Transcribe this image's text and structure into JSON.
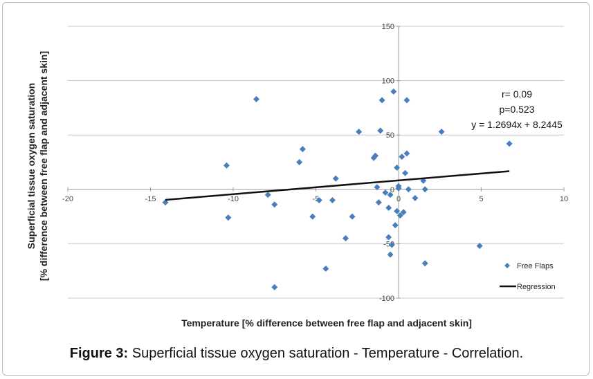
{
  "chart_data": {
    "type": "scatter",
    "xlabel": "Temperature [% difference between  free flap and adjacent skin]",
    "ylabel_line1": "Superficial tissue oxygen saturation",
    "ylabel_line2": "[% difference between  free flap and adjacent skin]",
    "xlim": [
      -20,
      10
    ],
    "ylim": [
      -100,
      150
    ],
    "x_ticks": [
      "-20",
      "-15",
      "-10",
      "-5",
      "0",
      "5",
      "10"
    ],
    "y_ticks": [
      "150",
      "100",
      "50",
      "0",
      "-50",
      "-100"
    ],
    "grid": "horizontal",
    "series": [
      {
        "name": "Free Flaps",
        "color": "#4a7ebb",
        "marker": "diamond",
        "x": [
          -14.1,
          -10.3,
          -10.4,
          -8.6,
          -7.9,
          -7.5,
          -7.5,
          -6.0,
          -5.8,
          -5.2,
          -4.8,
          -4.4,
          -4.0,
          -3.8,
          -3.2,
          -2.8,
          -2.4,
          -1.5,
          -1.4,
          -1.3,
          -1.2,
          -1.1,
          -1.0,
          -0.8,
          -0.6,
          -0.6,
          -0.5,
          -0.5,
          -0.4,
          -0.3,
          -0.2,
          -0.1,
          -0.1,
          0.0,
          0.0,
          0.1,
          0.2,
          0.3,
          0.4,
          0.5,
          0.5,
          0.6,
          1.0,
          1.5,
          1.6,
          1.6,
          2.6,
          4.9,
          6.7
        ],
        "y": [
          -12,
          -26,
          22,
          83,
          -5,
          -90,
          -14,
          25,
          37,
          -25,
          -10,
          -73,
          -10,
          10,
          -45,
          -25,
          53,
          29,
          31,
          2,
          -12,
          54,
          82,
          -3,
          -17,
          -44,
          -5,
          -60,
          -51,
          90,
          -33,
          -20,
          20,
          1,
          3,
          -24,
          30,
          -21,
          15,
          33,
          82,
          0,
          -8,
          8,
          -68,
          0,
          53,
          -52,
          42
        ]
      },
      {
        "name": "Regression",
        "color": "#111111",
        "type": "line",
        "slope": 1.2694,
        "intercept": 8.2445,
        "x_range": [
          -14.1,
          6.7
        ]
      }
    ],
    "annotations": [
      "r= 0.09",
      "p=0.523",
      "y = 1.2694x + 8.2445"
    ],
    "legend": [
      "Free Flaps",
      "Regression"
    ],
    "legend_position": "bottom-right"
  },
  "caption": {
    "label": "Figure 3:",
    "text": " Superficial tissue oxygen saturation - Temperature - Correlation."
  }
}
